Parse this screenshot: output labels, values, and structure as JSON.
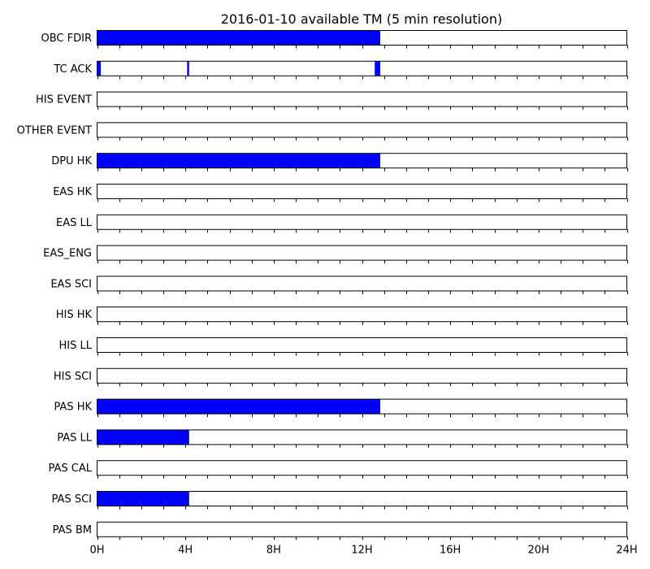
{
  "chart_data": {
    "type": "bar",
    "title": "2016-01-10 available TM (5 min resolution)",
    "xlabel": "",
    "ylabel": "",
    "xlim": [
      0,
      24
    ],
    "x_unit": "hours",
    "x_ticks": [
      {
        "value": 0,
        "label": "0H"
      },
      {
        "value": 4,
        "label": "4H"
      },
      {
        "value": 8,
        "label": "8H"
      },
      {
        "value": 12,
        "label": "12H"
      },
      {
        "value": 16,
        "label": "16H"
      },
      {
        "value": 20,
        "label": "20H"
      },
      {
        "value": 24,
        "label": "24H"
      }
    ],
    "minor_tick_step": 1,
    "bar_color": "#0000ff",
    "frame_color": "#000000",
    "series": [
      {
        "name": "OBC FDIR",
        "intervals": [
          [
            0,
            12.83
          ]
        ]
      },
      {
        "name": "TC ACK",
        "intervals": [
          [
            0,
            0.17
          ],
          [
            4.08,
            4.17
          ],
          [
            12.58,
            12.83
          ]
        ]
      },
      {
        "name": "HIS EVENT",
        "intervals": []
      },
      {
        "name": "OTHER EVENT",
        "intervals": []
      },
      {
        "name": "DPU HK",
        "intervals": [
          [
            0,
            12.83
          ]
        ]
      },
      {
        "name": "EAS HK",
        "intervals": []
      },
      {
        "name": "EAS LL",
        "intervals": []
      },
      {
        "name": "EAS_ENG",
        "intervals": []
      },
      {
        "name": "EAS SCI",
        "intervals": []
      },
      {
        "name": "HIS HK",
        "intervals": []
      },
      {
        "name": "HIS LL",
        "intervals": []
      },
      {
        "name": "HIS SCI",
        "intervals": []
      },
      {
        "name": "PAS HK",
        "intervals": [
          [
            0,
            12.83
          ]
        ]
      },
      {
        "name": "PAS LL",
        "intervals": [
          [
            0,
            4.17
          ]
        ]
      },
      {
        "name": "PAS CAL",
        "intervals": []
      },
      {
        "name": "PAS SCI",
        "intervals": [
          [
            0,
            4.17
          ]
        ]
      },
      {
        "name": "PAS BM",
        "intervals": []
      }
    ]
  }
}
